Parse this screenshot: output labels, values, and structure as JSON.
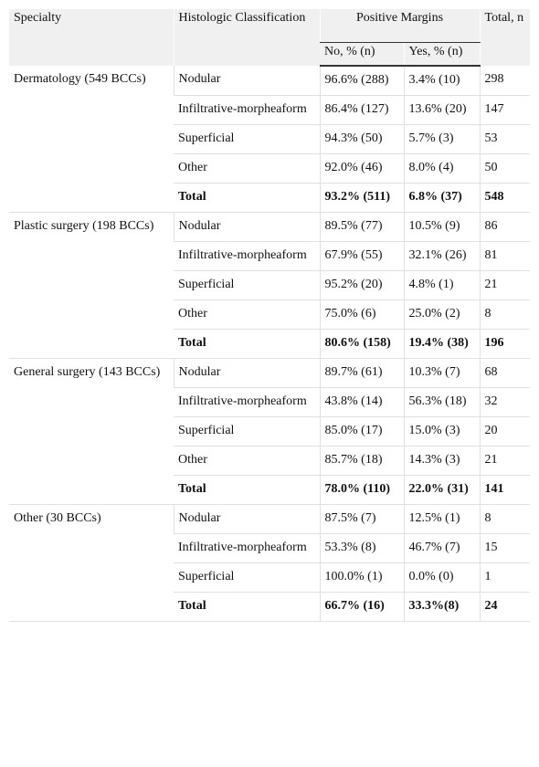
{
  "header": {
    "specialty": "Specialty",
    "classification": "Histologic Classification",
    "margins": "Positive Margins",
    "total": "Total, n",
    "no": "No, % (n)",
    "yes": "Yes, % (n)"
  },
  "groups": [
    {
      "specialty": "Dermatology (549 BCCs)",
      "rows": [
        [
          "Nodular",
          "96.6% (288)",
          "3.4% (10)",
          "298"
        ],
        [
          "Infiltrative-morpheaform",
          "86.4% (127)",
          "13.6% (20)",
          "147"
        ],
        [
          "Superficial",
          "94.3% (50)",
          "5.7% (3)",
          "53"
        ],
        [
          "Other",
          "92.0% (46)",
          "8.0% (4)",
          "50"
        ],
        [
          "Total",
          "93.2% (511)",
          "6.8% (37)",
          "548"
        ]
      ]
    },
    {
      "specialty": "Plastic surgery (198 BCCs)",
      "rows": [
        [
          "Nodular",
          "89.5% (77)",
          "10.5% (9)",
          "86"
        ],
        [
          "Infiltrative-morpheaform",
          "67.9% (55)",
          "32.1% (26)",
          "81"
        ],
        [
          "Superficial",
          "95.2% (20)",
          "4.8% (1)",
          "21"
        ],
        [
          "Other",
          "75.0% (6)",
          "25.0% (2)",
          "8"
        ],
        [
          "Total",
          "80.6% (158)",
          "19.4% (38)",
          "196"
        ]
      ]
    },
    {
      "specialty": "General surgery (143 BCCs)",
      "rows": [
        [
          "Nodular",
          "89.7% (61)",
          "10.3% (7)",
          "68"
        ],
        [
          "Infiltrative-morpheaform",
          "43.8% (14)",
          "56.3% (18)",
          "32"
        ],
        [
          "Superficial",
          "85.0% (17)",
          "15.0% (3)",
          "20"
        ],
        [
          "Other",
          "85.7% (18)",
          "14.3% (3)",
          "21"
        ],
        [
          "Total",
          "78.0% (110)",
          "22.0% (31)",
          "141"
        ]
      ]
    },
    {
      "specialty": "Other (30 BCCs)",
      "rows": [
        [
          "Nodular",
          "87.5% (7)",
          "12.5% (1)",
          "8"
        ],
        [
          "Infiltrative-morpheaform",
          "53.3% (8)",
          "46.7% (7)",
          "15"
        ],
        [
          "Superficial",
          "100.0% (1)",
          "0.0% (0)",
          "1"
        ],
        [
          "Total",
          "66.7% (16)",
          "33.3%(8)",
          "24"
        ]
      ]
    }
  ]
}
